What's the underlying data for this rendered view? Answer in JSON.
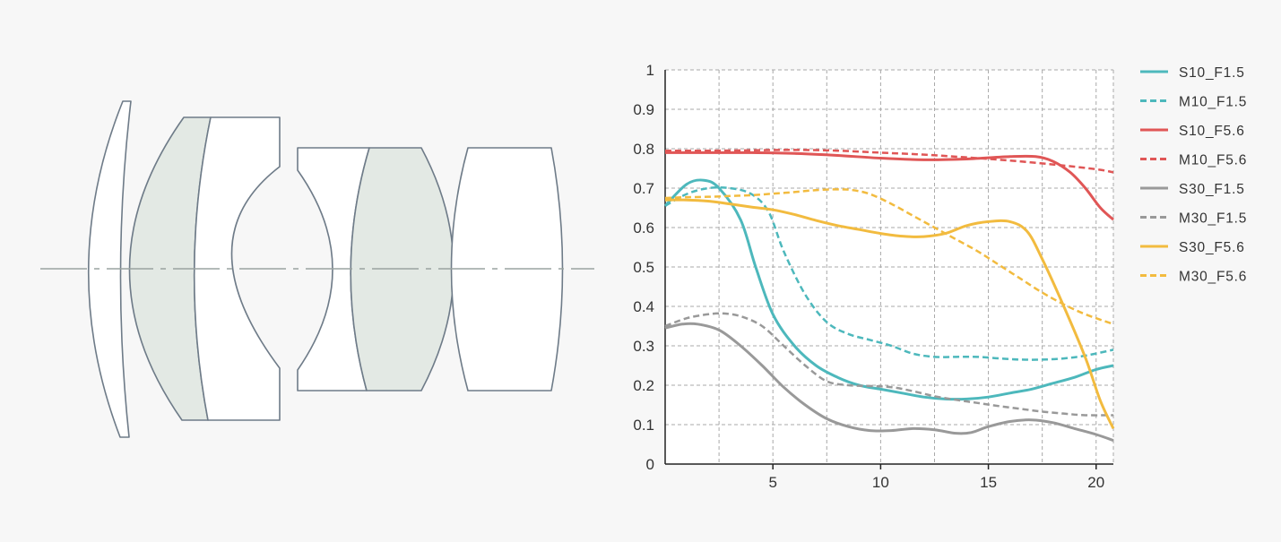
{
  "colors": {
    "background": "#f7f7f7",
    "lens_outline": "#6e7b88",
    "lens_fill_clear": "#ffffff",
    "lens_fill_tinted": "#e3e9e4",
    "axis_line": "#9aa3a0",
    "grid": "#a8a8a8"
  },
  "lens_diagram": {
    "elements": [
      {
        "id": "element-1",
        "tint": false
      },
      {
        "id": "element-2",
        "tint": true
      },
      {
        "id": "element-3",
        "tint": false
      },
      {
        "id": "element-4",
        "tint": false
      },
      {
        "id": "element-5",
        "tint": true
      },
      {
        "id": "element-6",
        "tint": false
      }
    ]
  },
  "chart_data": {
    "type": "line",
    "title": "",
    "xlabel": "",
    "ylabel": "",
    "xlim": [
      0,
      20.8
    ],
    "ylim": [
      0,
      1
    ],
    "x_ticks": [
      5,
      10,
      15,
      20
    ],
    "y_ticks": [
      0,
      0.1,
      0.2,
      0.3,
      0.4,
      0.5,
      0.6,
      0.7,
      0.8,
      0.9,
      1
    ],
    "x_tick_labels": [
      "5",
      "10",
      "15",
      "20"
    ],
    "y_tick_labels": [
      "0",
      "0.1",
      "0.2",
      "0.3",
      "0.4",
      "0.5",
      "0.6",
      "0.7",
      "0.8",
      "0.9",
      "1"
    ],
    "grid": true,
    "legend_position": "right",
    "series": [
      {
        "name": "S10_F1.5",
        "color": "#4db8bc",
        "dash": false,
        "x": [
          0,
          1,
          1.8,
          2.5,
          3.5,
          4.2,
          5,
          6,
          7,
          8,
          9,
          10,
          11,
          12,
          13,
          14,
          15,
          16,
          17,
          18,
          19,
          20,
          20.8
        ],
        "y": [
          0.655,
          0.71,
          0.72,
          0.7,
          0.62,
          0.5,
          0.38,
          0.3,
          0.25,
          0.22,
          0.2,
          0.19,
          0.18,
          0.17,
          0.165,
          0.165,
          0.17,
          0.18,
          0.19,
          0.205,
          0.22,
          0.24,
          0.25
        ]
      },
      {
        "name": "M10_F1.5",
        "color": "#4db8bc",
        "dash": true,
        "x": [
          0,
          1,
          2,
          3,
          4,
          4.8,
          5.5,
          6.5,
          7.5,
          8.5,
          9.5,
          10.5,
          11.5,
          12.5,
          13.5,
          14.5,
          15.5,
          16.5,
          17.5,
          18.5,
          19.5,
          20.8
        ],
        "y": [
          0.655,
          0.685,
          0.7,
          0.7,
          0.685,
          0.64,
          0.54,
          0.43,
          0.36,
          0.33,
          0.315,
          0.3,
          0.28,
          0.272,
          0.272,
          0.272,
          0.268,
          0.265,
          0.265,
          0.268,
          0.275,
          0.29
        ]
      },
      {
        "name": "S10_F5.6",
        "color": "#e05656",
        "dash": false,
        "x": [
          0,
          2,
          4,
          6,
          8,
          10,
          12,
          14,
          16,
          17.2,
          18,
          18.8,
          19.5,
          20.2,
          20.8
        ],
        "y": [
          0.79,
          0.79,
          0.79,
          0.788,
          0.783,
          0.776,
          0.772,
          0.774,
          0.78,
          0.78,
          0.768,
          0.74,
          0.7,
          0.65,
          0.62
        ]
      },
      {
        "name": "M10_F5.6",
        "color": "#e05656",
        "dash": true,
        "x": [
          0,
          2,
          4,
          6,
          8,
          10,
          12,
          14,
          16,
          18,
          20,
          20.8
        ],
        "y": [
          0.795,
          0.795,
          0.796,
          0.797,
          0.795,
          0.79,
          0.785,
          0.778,
          0.77,
          0.76,
          0.748,
          0.74
        ]
      },
      {
        "name": "S30_F1.5",
        "color": "#999999",
        "dash": false,
        "x": [
          0,
          0.8,
          1.5,
          2.5,
          3.5,
          4.5,
          5.5,
          6.5,
          7.5,
          8.5,
          9.5,
          10.5,
          11.5,
          12.5,
          13.5,
          14.2,
          15,
          16,
          17,
          18,
          19,
          20,
          20.8
        ],
        "y": [
          0.345,
          0.355,
          0.355,
          0.34,
          0.3,
          0.25,
          0.195,
          0.15,
          0.115,
          0.095,
          0.085,
          0.085,
          0.09,
          0.087,
          0.078,
          0.08,
          0.095,
          0.108,
          0.112,
          0.105,
          0.09,
          0.075,
          0.06
        ]
      },
      {
        "name": "M30_F1.5",
        "color": "#999999",
        "dash": true,
        "x": [
          0,
          1,
          2,
          2.7,
          3.5,
          4.5,
          5.5,
          6.5,
          7.5,
          8.5,
          9.5,
          10.5,
          11.5,
          12.5,
          13.5,
          14.5,
          15.5,
          16.5,
          17.5,
          18.5,
          19.5,
          20.8
        ],
        "y": [
          0.35,
          0.37,
          0.38,
          0.382,
          0.375,
          0.35,
          0.3,
          0.25,
          0.21,
          0.2,
          0.198,
          0.195,
          0.185,
          0.172,
          0.163,
          0.155,
          0.147,
          0.14,
          0.133,
          0.128,
          0.124,
          0.124
        ]
      },
      {
        "name": "S30_F5.6",
        "color": "#f2bb3f",
        "dash": false,
        "x": [
          0,
          1,
          2,
          3,
          4,
          5,
          6,
          7,
          8,
          9,
          10,
          11,
          12,
          13,
          14,
          15,
          16,
          16.8,
          17.5,
          18.5,
          19.5,
          20.2,
          20.8
        ],
        "y": [
          0.67,
          0.67,
          0.667,
          0.66,
          0.652,
          0.645,
          0.633,
          0.618,
          0.605,
          0.595,
          0.585,
          0.578,
          0.577,
          0.585,
          0.605,
          0.615,
          0.615,
          0.59,
          0.52,
          0.4,
          0.27,
          0.16,
          0.09
        ]
      },
      {
        "name": "M30_F5.6",
        "color": "#f2bb3f",
        "dash": true,
        "x": [
          0,
          1,
          2,
          3,
          4,
          5,
          6,
          7,
          8,
          8.7,
          9.5,
          10.5,
          11.5,
          12.5,
          13.5,
          14.5,
          15.5,
          16.5,
          17.5,
          18.5,
          19.5,
          20.8
        ],
        "y": [
          0.675,
          0.677,
          0.678,
          0.68,
          0.682,
          0.686,
          0.69,
          0.695,
          0.697,
          0.695,
          0.685,
          0.66,
          0.63,
          0.6,
          0.57,
          0.54,
          0.505,
          0.47,
          0.435,
          0.405,
          0.38,
          0.355
        ]
      }
    ]
  }
}
